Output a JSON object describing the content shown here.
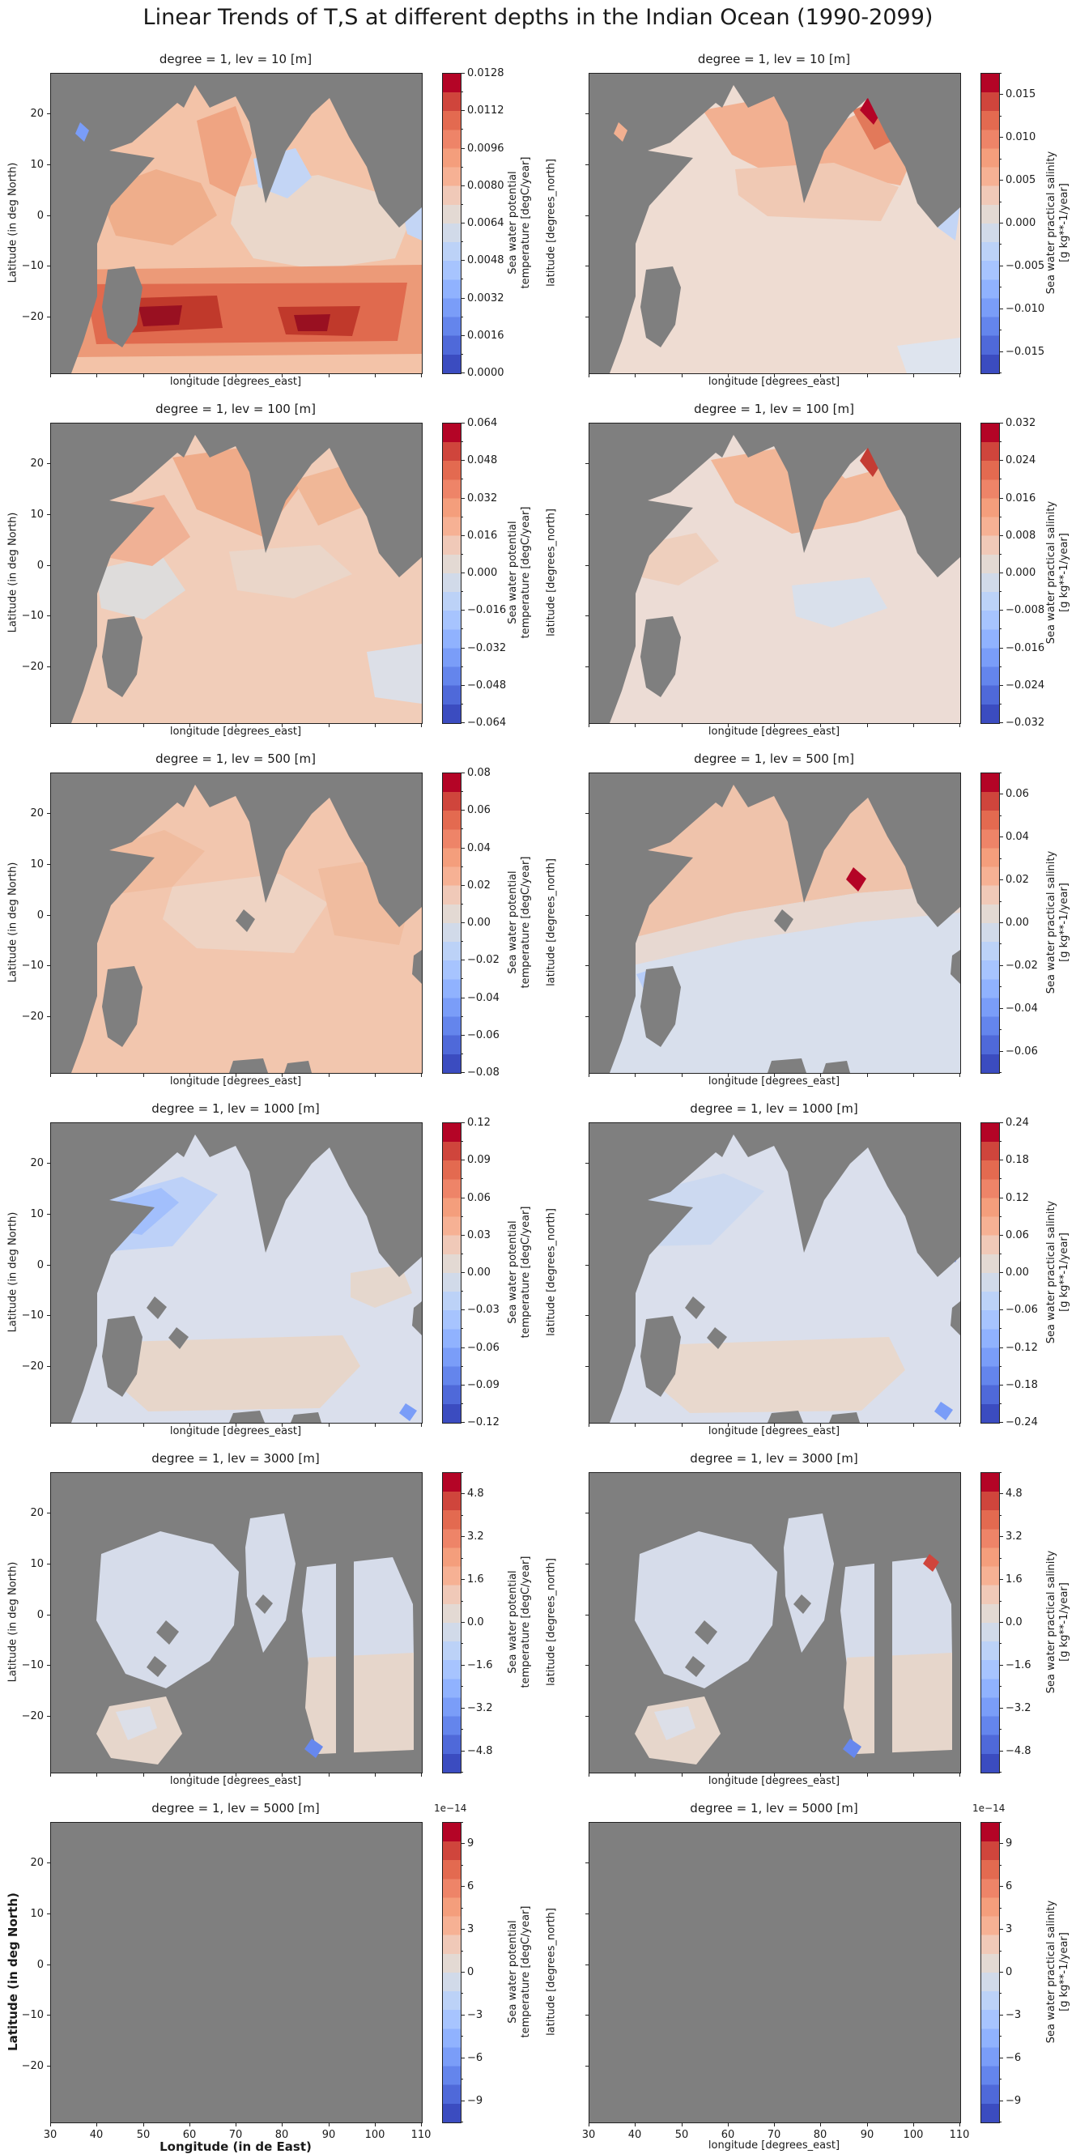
{
  "figure_title": "Linear Trends of T,S at different depths in the Indian Ocean (1990-2099)",
  "axis": {
    "left_ylabel": "Latitude (in deg North)",
    "right_ylabel": "latitude [degrees_north]",
    "xlabel_inner": "longitude [degrees_east]",
    "xlabel_bottom_left": "Longitude (in de East)",
    "yticks": [
      "20",
      "10",
      "0",
      "−10",
      "−20"
    ],
    "xticks_bottom": [
      "30",
      "40",
      "50",
      "60",
      "70",
      "80",
      "90",
      "100",
      "110"
    ]
  },
  "colorbar_labels": {
    "temp": [
      "Sea water potential",
      "temperature [degC/year]"
    ],
    "sal": [
      "Sea water practical salinity",
      "[g kg**-1/year]"
    ]
  },
  "colors": {
    "land": "#7f7f7f",
    "spine": "#222222"
  },
  "colorbar_palette": [
    "#3b4cc0",
    "#4f69d9",
    "#6485ec",
    "#7a9df8",
    "#90b2fe",
    "#a7c4fe",
    "#bcd2f7",
    "#d1dae9",
    "#e3d9d3",
    "#f0c9b8",
    "#f6b194",
    "#f49e7c",
    "#ee8468",
    "#e36a50",
    "#cf453c",
    "#b40426"
  ],
  "rows": [
    {
      "lev": "10",
      "title": "degree = 1, lev = 10 [m]",
      "left_type": "A",
      "right_type": "B",
      "offset": "",
      "left_ticks": [
        "0.0128",
        "0.0112",
        "0.0096",
        "0.0080",
        "0.0064",
        "0.0048",
        "0.0032",
        "0.0016",
        "0.0000"
      ],
      "right_ticks": [
        "0.015",
        "0.010",
        "0.005",
        "0.000",
        "−0.005",
        "−0.010",
        "−0.015"
      ]
    },
    {
      "lev": "100",
      "title": "degree = 1, lev = 100 [m]",
      "left_type": "A",
      "right_type": "A",
      "offset": "",
      "left_ticks": [
        "0.064",
        "0.048",
        "0.032",
        "0.016",
        "0.000",
        "−0.016",
        "−0.032",
        "−0.048",
        "−0.064"
      ],
      "right_ticks": [
        "0.032",
        "0.024",
        "0.016",
        "0.008",
        "0.000",
        "−0.008",
        "−0.016",
        "−0.024",
        "−0.032"
      ]
    },
    {
      "lev": "500",
      "title": "degree = 1, lev = 500 [m]",
      "left_type": "A",
      "right_type": "B",
      "offset": "",
      "left_ticks": [
        "0.08",
        "0.06",
        "0.04",
        "0.02",
        "0.00",
        "−0.02",
        "−0.04",
        "−0.06",
        "−0.08"
      ],
      "right_ticks": [
        "0.06",
        "0.04",
        "0.02",
        "0.00",
        "−0.02",
        "−0.04",
        "−0.06"
      ]
    },
    {
      "lev": "1000",
      "title": "degree = 1, lev = 1000 [m]",
      "left_type": "A",
      "right_type": "A",
      "offset": "",
      "left_ticks": [
        "0.12",
        "0.09",
        "0.06",
        "0.03",
        "0.00",
        "−0.03",
        "−0.06",
        "−0.09",
        "−0.12"
      ],
      "right_ticks": [
        "0.24",
        "0.18",
        "0.12",
        "0.06",
        "0.00",
        "−0.06",
        "−0.12",
        "−0.18",
        "−0.24"
      ]
    },
    {
      "lev": "3000",
      "title": "degree = 1, lev = 3000 [m]",
      "left_type": "B",
      "right_type": "B",
      "offset": "",
      "left_ticks": [
        "4.8",
        "3.2",
        "1.6",
        "0.0",
        "−1.6",
        "−3.2",
        "−4.8"
      ],
      "right_ticks": [
        "4.8",
        "3.2",
        "1.6",
        "0.0",
        "−1.6",
        "−3.2",
        "−4.8"
      ]
    },
    {
      "lev": "5000",
      "title": "degree = 1, lev = 5000 [m]",
      "left_type": "B",
      "right_type": "B",
      "offset": "1e−14",
      "left_ticks": [
        "9",
        "6",
        "3",
        "0",
        "−3",
        "−6",
        "−9"
      ],
      "right_ticks": [
        "9",
        "6",
        "3",
        "0",
        "−3",
        "−6",
        "−9"
      ]
    }
  ],
  "chart_data": [
    {
      "type": "heatmap",
      "panel": "row1-left",
      "depth_m": 10,
      "variable": "sea water potential temperature linear trend",
      "title": "degree = 1, lev = 10 [m]",
      "xlabel": "longitude [degrees_east]",
      "ylabel": "Latitude (in deg North)",
      "x_range_deg_east": [
        30,
        110
      ],
      "y_range_deg_north": [
        -30,
        28
      ],
      "colorbar_label": "Sea water potential temperature [degC/year]",
      "colorbar_ticks": [
        0.0128,
        0.0112,
        0.0096,
        0.008,
        0.0064,
        0.0048,
        0.0032,
        0.0016,
        0.0
      ],
      "summary": "Warming everywhere 0-0.0128 degC/yr; strongest dark-red zonal band (0.010-0.0128) between about 15S and 28S; moderate 0.006-0.009 over Arabian Sea; weak near-neutral and slightly cool patches in eastern equatorial basin and along Sumatra coast; land masked gray."
    },
    {
      "type": "heatmap",
      "panel": "row1-right",
      "depth_m": 10,
      "variable": "sea water practical salinity linear trend",
      "title": "degree = 1, lev = 10 [m]",
      "xlabel": "longitude [degrees_east]",
      "ylabel": "latitude [degrees_north]",
      "x_range_deg_east": [
        30,
        110
      ],
      "y_range_deg_north": [
        -30,
        28
      ],
      "colorbar_label": "Sea water practical salinity [g kg**-1/year]",
      "colorbar_ticks": [
        0.015,
        0.01,
        0.005,
        0.0,
        -0.005,
        -0.01,
        -0.015
      ],
      "summary": "Salinity increase 0.005-0.017 g/kg/yr in Arabian Sea and Bay of Bengal with maximum at NE Bay of Bengal; weak change in the south; freshening to about -0.015 in a band along Sumatra."
    },
    {
      "type": "heatmap",
      "panel": "row2-left",
      "depth_m": 100,
      "variable": "sea water potential temperature linear trend",
      "title": "degree = 1, lev = 100 [m]",
      "xlabel": "longitude [degrees_east]",
      "ylabel": "Latitude (in deg North)",
      "x_range_deg_east": [
        30,
        110
      ],
      "y_range_deg_north": [
        -30,
        28
      ],
      "colorbar_label": "Sea water potential temperature [degC/year]",
      "colorbar_ticks": [
        0.064,
        0.048,
        0.032,
        0.016,
        0.0,
        -0.016,
        -0.032,
        -0.048,
        -0.064
      ],
      "summary": "Weak warming ~0.01-0.03 degC/yr over most of the basin, strongest in northern Arabian Sea / Bay of Bengal; small red maximum near east Indian coast; pale near-zero patches in west-central basin."
    },
    {
      "type": "heatmap",
      "panel": "row2-right",
      "depth_m": 100,
      "variable": "sea water practical salinity linear trend",
      "title": "degree = 1, lev = 100 [m]",
      "xlabel": "longitude [degrees_east]",
      "ylabel": "latitude [degrees_north]",
      "x_range_deg_east": [
        30,
        110
      ],
      "y_range_deg_north": [
        -30,
        28
      ],
      "colorbar_label": "Sea water practical salinity [g kg**-1/year]",
      "colorbar_ticks": [
        0.032,
        0.024,
        0.016,
        0.008,
        0.0,
        -0.008,
        -0.016,
        -0.024,
        -0.032
      ],
      "summary": "Salinification up to ~0.03 g/kg/yr in the northern bays with a small coastal maximum; weak +/-0.008 changes elsewhere; slight freshening patch east-central basin."
    },
    {
      "type": "heatmap",
      "panel": "row3-left",
      "depth_m": 500,
      "variable": "sea water potential temperature linear trend",
      "title": "degree = 1, lev = 500 [m]",
      "xlabel": "longitude [degrees_east]",
      "ylabel": "Latitude (in deg North)",
      "x_range_deg_east": [
        30,
        110
      ],
      "y_range_deg_north": [
        -30,
        28
      ],
      "colorbar_label": "Sea water potential temperature [degC/year]",
      "colorbar_ticks": [
        0.08,
        0.06,
        0.04,
        0.02,
        0.0,
        -0.02,
        -0.04,
        -0.06,
        -0.08
      ],
      "summary": "Nearly uniform weak warming ~0.01-0.03 degC/yr across the entire basin."
    },
    {
      "type": "heatmap",
      "panel": "row3-right",
      "depth_m": 500,
      "variable": "sea water practical salinity linear trend",
      "title": "degree = 1, lev = 500 [m]",
      "xlabel": "longitude [degrees_east]",
      "ylabel": "latitude [degrees_north]",
      "x_range_deg_east": [
        30,
        110
      ],
      "y_range_deg_north": [
        -30,
        28
      ],
      "colorbar_label": "Sea water practical salinity [g kg**-1/year]",
      "colorbar_ticks": [
        0.06,
        0.04,
        0.02,
        0.0,
        -0.02,
        -0.04,
        -0.06
      ],
      "summary": "Slight salinity increase (~0.005-0.02) north of about 5S, slight decrease (~-0.005) to the south; isolated red maximum (~0.06) near the western Bay of Bengal coast."
    },
    {
      "type": "heatmap",
      "panel": "row4-left",
      "depth_m": 1000,
      "variable": "sea water potential temperature linear trend",
      "title": "degree = 1, lev = 1000 [m]",
      "xlabel": "longitude [degrees_east]",
      "ylabel": "Latitude (in deg North)",
      "x_range_deg_east": [
        30,
        110
      ],
      "y_range_deg_north": [
        -30,
        28
      ],
      "colorbar_label": "Sea water potential temperature [degC/year]",
      "colorbar_ticks": [
        0.12,
        0.09,
        0.06,
        0.03,
        0.0,
        -0.03,
        -0.06,
        -0.09,
        -0.12
      ],
      "summary": "Mostly near zero; weak cooling (about -0.03) in NW Arabian Sea diagonal band; weak warming (+0.02) in southern subtropical blob; tiny +/- spots at the eastern boundary."
    },
    {
      "type": "heatmap",
      "panel": "row4-right",
      "depth_m": 1000,
      "variable": "sea water practical salinity linear trend",
      "title": "degree = 1, lev = 1000 [m]",
      "xlabel": "longitude [degrees_east]",
      "ylabel": "latitude [degrees_north]",
      "x_range_deg_east": [
        30,
        110
      ],
      "y_range_deg_north": [
        -30,
        28
      ],
      "colorbar_label": "Sea water practical salinity [g kg**-1/year]",
      "colorbar_ticks": [
        0.24,
        0.18,
        0.12,
        0.06,
        0.0,
        -0.06,
        -0.12,
        -0.18,
        -0.24
      ],
      "summary": "Near-zero trends; slight freshening in NW Arabian Sea; slight salinity increase in a southern band; small blue spots near Sumatra and SE corner."
    },
    {
      "type": "heatmap",
      "panel": "row5-left",
      "depth_m": 3000,
      "variable": "sea water potential temperature linear trend",
      "title": "degree = 1, lev = 3000 [m]",
      "xlabel": "longitude [degrees_east]",
      "ylabel": "Latitude (in deg North)",
      "x_range_deg_east": [
        30,
        110
      ],
      "y_range_deg_north": [
        -30,
        28
      ],
      "colorbar_label": "Sea water potential temperature [degC/year]",
      "colorbar_ticks": [
        4.8,
        3.2,
        1.6,
        0.0,
        -1.6,
        -3.2,
        -4.8
      ],
      "summary": "Most cells masked by bathymetry (gray); remaining deep basins near zero: slightly cool (light blue) northern/western basins, slightly warm (light beige) southeastern and southwestern basins; isolated small blue spot in the south."
    },
    {
      "type": "heatmap",
      "panel": "row5-right",
      "depth_m": 3000,
      "variable": "sea water practical salinity linear trend",
      "title": "degree = 1, lev = 3000 [m]",
      "xlabel": "longitude [degrees_east]",
      "ylabel": "latitude [degrees_north]",
      "x_range_deg_east": [
        30,
        110
      ],
      "y_range_deg_north": [
        -30,
        28
      ],
      "colorbar_label": "Sea water practical salinity [g kg**-1/year]",
      "colorbar_ticks": [
        4.8,
        3.2,
        1.6,
        0.0,
        -1.6,
        -3.2,
        -4.8
      ],
      "summary": "Same basin mask as temperature at 3000 m; near-zero trends, slightly positive SE basin, slightly negative elsewhere; tiny red and blue spots."
    },
    {
      "type": "heatmap",
      "panel": "row6-left",
      "depth_m": 5000,
      "variable": "sea water potential temperature linear trend",
      "title": "degree = 1, lev = 5000 [m]",
      "xlabel": "Longitude (in de East)",
      "ylabel": "Latitude (in deg North)",
      "x_range_deg_east": [
        30,
        110
      ],
      "y_range_deg_north": [
        -30,
        28
      ],
      "colorbar_label": "Sea water potential temperature [degC/year]",
      "colorbar_offset": "1e-14",
      "colorbar_ticks": [
        9,
        6,
        3,
        0,
        -3,
        -6,
        -9
      ],
      "summary": "Entire domain masked (no ocean cells at 5000 m): uniform gray map; colorbar scaled by 1e-14."
    },
    {
      "type": "heatmap",
      "panel": "row6-right",
      "depth_m": 5000,
      "variable": "sea water practical salinity linear trend",
      "title": "degree = 1, lev = 5000 [m]",
      "xlabel": "longitude [degrees_east]",
      "ylabel": "latitude [degrees_north]",
      "x_range_deg_east": [
        30,
        110
      ],
      "y_range_deg_north": [
        -30,
        28
      ],
      "colorbar_label": "Sea water practical salinity [g kg**-1/year]",
      "colorbar_offset": "1e-14",
      "colorbar_ticks": [
        9,
        6,
        3,
        0,
        -3,
        -6,
        -9
      ],
      "summary": "Entire domain masked (no ocean cells at 5000 m): uniform gray map; colorbar scaled by 1e-14."
    }
  ]
}
